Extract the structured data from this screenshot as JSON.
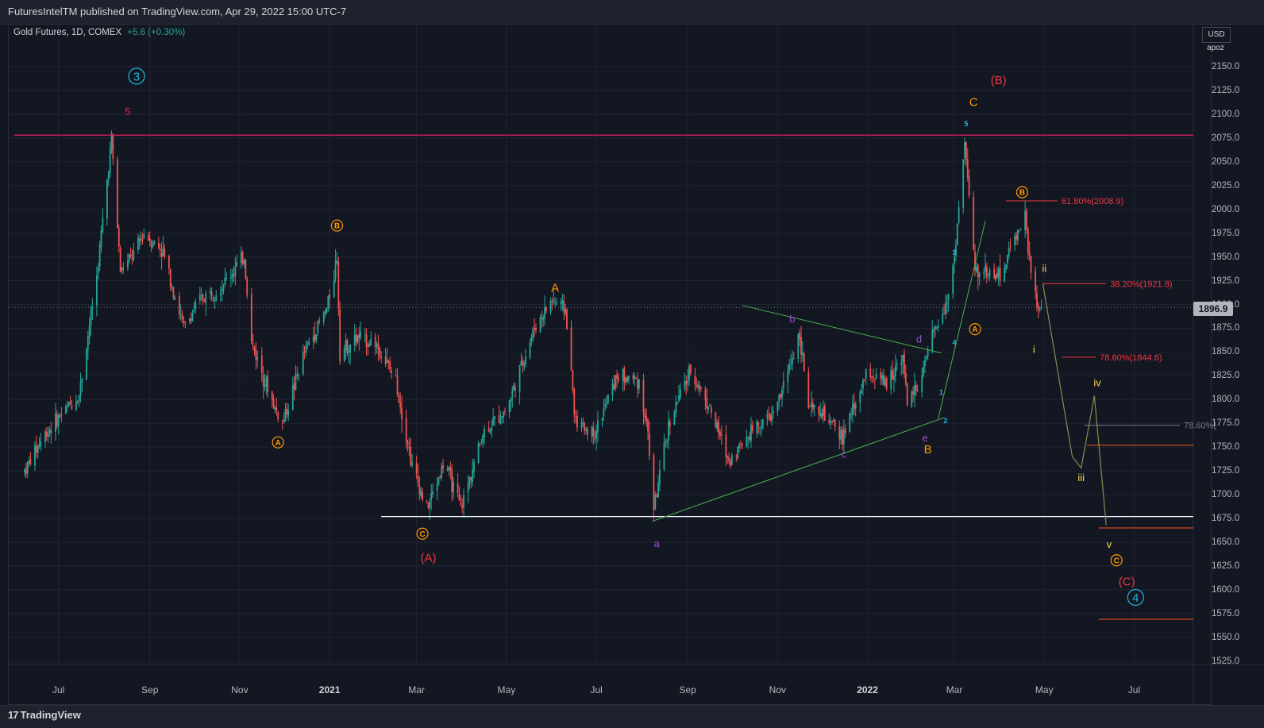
{
  "header": {
    "publisher_text": "FuturesIntelTM published on TradingView.com, Apr 29, 2022 15:00 UTC-7"
  },
  "symbol": {
    "title": "Gold Futures, 1D, COMEX",
    "change": "+5.6 (+0.30%)"
  },
  "price_scale": {
    "currency": "USD",
    "mode": "apoz"
  },
  "colors": {
    "background": "#131722",
    "up": "#26a69a",
    "down": "#ef5350",
    "wave_red": "#f23645",
    "wave_orange": "#ff9800",
    "wave_cyan": "#22b4e0",
    "wave_purple": "#9c4fd1",
    "wave_yellow": "#ffd740",
    "trendline": "#4caf50"
  },
  "footer": {
    "brand": "TradingView",
    "brand_mark": "17"
  },
  "chart_data": {
    "type": "candlestick",
    "title": "Gold Futures, 1D, COMEX",
    "last_price": "1896.9",
    "ylim": [
      1520,
      2172
    ],
    "y_ticks": [
      "2150.0",
      "2125.0",
      "2100.0",
      "2075.0",
      "2050.0",
      "2025.0",
      "2000.0",
      "1975.0",
      "1950.0",
      "1925.0",
      "1900.0",
      "1875.0",
      "1850.0",
      "1825.0",
      "1800.0",
      "1775.0",
      "1750.0",
      "1725.0",
      "1700.0",
      "1675.0",
      "1650.0",
      "1625.0",
      "1600.0",
      "1575.0",
      "1550.0",
      "1525.0"
    ],
    "x_ticks": [
      {
        "label": "Jul",
        "date": "2020-07-01",
        "bold": false
      },
      {
        "label": "Sep",
        "date": "2020-09-01",
        "bold": false
      },
      {
        "label": "Nov",
        "date": "2020-11-01",
        "bold": false
      },
      {
        "label": "2021",
        "date": "2021-01-01",
        "bold": true
      },
      {
        "label": "Mar",
        "date": "2021-03-01",
        "bold": false
      },
      {
        "label": "May",
        "date": "2021-05-01",
        "bold": false
      },
      {
        "label": "Jul",
        "date": "2021-07-01",
        "bold": false
      },
      {
        "label": "Sep",
        "date": "2021-09-01",
        "bold": false
      },
      {
        "label": "Nov",
        "date": "2021-11-01",
        "bold": false
      },
      {
        "label": "2022",
        "date": "2022-01-01",
        "bold": true
      },
      {
        "label": "Mar",
        "date": "2022-03-01",
        "bold": false
      },
      {
        "label": "May",
        "date": "2022-05-01",
        "bold": false
      },
      {
        "label": "Jul",
        "date": "2022-07-01",
        "bold": false
      }
    ],
    "price_path": [
      [
        "2020-06-08",
        1725
      ],
      [
        "2020-06-20",
        1760
      ],
      [
        "2020-07-06",
        1790
      ],
      [
        "2020-07-15",
        1805
      ],
      [
        "2020-07-27",
        1930
      ],
      [
        "2020-08-06",
        2075
      ],
      [
        "2020-08-12",
        1935
      ],
      [
        "2020-08-20",
        1950
      ],
      [
        "2020-08-28",
        1975
      ],
      [
        "2020-09-10",
        1955
      ],
      [
        "2020-09-24",
        1875
      ],
      [
        "2020-10-05",
        1905
      ],
      [
        "2020-10-20",
        1920
      ],
      [
        "2020-11-04",
        1950
      ],
      [
        "2020-11-09",
        1860
      ],
      [
        "2020-11-25",
        1790
      ],
      [
        "2020-11-30",
        1775
      ],
      [
        "2020-12-15",
        1850
      ],
      [
        "2020-12-30",
        1895
      ],
      [
        "2021-01-06",
        1950
      ],
      [
        "2021-01-08",
        1850
      ],
      [
        "2021-01-20",
        1865
      ],
      [
        "2021-02-01",
        1860
      ],
      [
        "2021-02-15",
        1820
      ],
      [
        "2021-02-26",
        1730
      ],
      [
        "2021-03-08",
        1685
      ],
      [
        "2021-03-20",
        1735
      ],
      [
        "2021-03-31",
        1685
      ],
      [
        "2021-04-15",
        1765
      ],
      [
        "2021-05-01",
        1790
      ],
      [
        "2021-05-20",
        1875
      ],
      [
        "2021-06-01",
        1905
      ],
      [
        "2021-06-10",
        1895
      ],
      [
        "2021-06-17",
        1775
      ],
      [
        "2021-06-30",
        1765
      ],
      [
        "2021-07-15",
        1825
      ],
      [
        "2021-07-30",
        1820
      ],
      [
        "2021-08-05",
        1765
      ],
      [
        "2021-08-09",
        1685
      ],
      [
        "2021-08-20",
        1780
      ],
      [
        "2021-09-03",
        1830
      ],
      [
        "2021-09-15",
        1795
      ],
      [
        "2021-09-29",
        1735
      ],
      [
        "2021-10-15",
        1770
      ],
      [
        "2021-10-30",
        1785
      ],
      [
        "2021-11-08",
        1830
      ],
      [
        "2021-11-16",
        1870
      ],
      [
        "2021-11-22",
        1790
      ],
      [
        "2021-12-01",
        1785
      ],
      [
        "2021-12-15",
        1760
      ],
      [
        "2022-01-01",
        1830
      ],
      [
        "2022-01-14",
        1815
      ],
      [
        "2022-01-25",
        1850
      ],
      [
        "2022-01-28",
        1795
      ],
      [
        "2022-02-07",
        1825
      ],
      [
        "2022-02-15",
        1870
      ],
      [
        "2022-02-24",
        1905
      ],
      [
        "2022-03-01",
        1950
      ],
      [
        "2022-03-08",
        2070
      ],
      [
        "2022-03-15",
        1935
      ],
      [
        "2022-03-22",
        1935
      ],
      [
        "2022-04-01",
        1930
      ],
      [
        "2022-04-12",
        1975
      ],
      [
        "2022-04-18",
        1990
      ],
      [
        "2022-04-21",
        1945
      ],
      [
        "2022-04-27",
        1890
      ],
      [
        "2022-04-29",
        1896.9
      ]
    ],
    "horizontal_lines": [
      {
        "name": "resistance",
        "price": 2078,
        "color": "#e91e63",
        "from": "2020-06-01",
        "to": "2022-08-01"
      },
      {
        "name": "support",
        "price": 1677,
        "color": "#ffffff",
        "from": "2021-02-05",
        "to": "2022-08-01"
      }
    ],
    "trendlines": [
      {
        "from": [
          "2021-08-08",
          1672
        ],
        "to": [
          "2022-02-22",
          1781
        ]
      },
      {
        "from": [
          "2021-10-08",
          1899
        ],
        "to": [
          "2022-02-20",
          1849
        ]
      },
      {
        "from": [
          "2022-02-18",
          1780
        ],
        "to": [
          "2022-03-22",
          1988
        ]
      }
    ],
    "fib_levels": [
      {
        "label": "61.80%(2008.9)",
        "price": 2008.9,
        "from": "2022-04-05",
        "to": "2022-05-10",
        "color": "#f23645"
      },
      {
        "label": "38.20%(1921.8)",
        "price": 1921.8,
        "from": "2022-04-30",
        "to": "2022-06-12",
        "color": "#f23645"
      },
      {
        "label": "78.60%(1844.6)",
        "price": 1844.6,
        "from": "2022-05-13",
        "to": "2022-06-05",
        "color": "#f23645"
      },
      {
        "label": "78.60%(",
        "price": 1773,
        "from": "2022-05-28",
        "to": "2022-08-01",
        "color": "#787b86"
      }
    ],
    "extra_levels": [
      {
        "price": 1752,
        "from": "2022-05-30",
        "to": "2022-08-01",
        "color": "#ff5722"
      },
      {
        "price": 1665,
        "from": "2022-06-07",
        "to": "2022-08-01",
        "color": "#ff5722"
      },
      {
        "price": 1569,
        "from": "2022-06-07",
        "to": "2022-08-01",
        "color": "#ff5722"
      }
    ],
    "projection_path": [
      [
        "2022-04-30",
        1922
      ],
      [
        "2022-05-20",
        1740
      ],
      [
        "2022-05-26",
        1728
      ],
      [
        "2022-06-04",
        1804
      ],
      [
        "2022-06-12",
        1668
      ]
    ],
    "wave_labels": [
      {
        "text": "3",
        "date": "2020-08-23",
        "price": 2140,
        "color": "#22b4e0",
        "circle": true,
        "size": 15
      },
      {
        "text": "5",
        "date": "2020-08-17",
        "price": 2103,
        "color": "#e91e63",
        "circle": false,
        "size": 13
      },
      {
        "text": "B",
        "date": "2021-01-06",
        "price": 1983,
        "color": "#ff9800",
        "circle": true,
        "size": 10
      },
      {
        "text": "A",
        "date": "2020-11-27",
        "price": 1755,
        "color": "#ff9800",
        "circle": true,
        "size": 10
      },
      {
        "text": "C",
        "date": "2021-03-05",
        "price": 1659,
        "color": "#ff9800",
        "circle": true,
        "size": 10
      },
      {
        "text": "(A)",
        "date": "2021-03-09",
        "price": 1634,
        "color": "#f23645",
        "circle": false,
        "size": 15
      },
      {
        "text": "A",
        "date": "2021-06-03",
        "price": 1918,
        "color": "#ff9800",
        "circle": false,
        "size": 15
      },
      {
        "text": "a",
        "date": "2021-08-11",
        "price": 1649,
        "color": "#9c4fd1",
        "circle": false,
        "size": 13
      },
      {
        "text": "b",
        "date": "2021-11-11",
        "price": 1885,
        "color": "#9c4fd1",
        "circle": false,
        "size": 13
      },
      {
        "text": "c",
        "date": "2021-12-16",
        "price": 1743,
        "color": "#9c4fd1",
        "circle": false,
        "size": 13
      },
      {
        "text": "d",
        "date": "2022-02-05",
        "price": 1864,
        "color": "#9c4fd1",
        "circle": false,
        "size": 13
      },
      {
        "text": "e",
        "date": "2022-02-09",
        "price": 1760,
        "color": "#9c4fd1",
        "circle": false,
        "size": 13
      },
      {
        "text": "B",
        "date": "2022-02-11",
        "price": 1748,
        "color": "#ff9800",
        "circle": false,
        "size": 15
      },
      {
        "text": "1",
        "date": "2022-02-20",
        "price": 1808,
        "color": "#22b4e0",
        "circle": false,
        "size": 9
      },
      {
        "text": "2",
        "date": "2022-02-23",
        "price": 1778,
        "color": "#22b4e0",
        "circle": false,
        "size": 9
      },
      {
        "text": "3",
        "date": "2022-03-01",
        "price": 1955,
        "color": "#22b4e0",
        "circle": false,
        "size": 9
      },
      {
        "text": "4",
        "date": "2022-03-01",
        "price": 1860,
        "color": "#22b4e0",
        "circle": false,
        "size": 9
      },
      {
        "text": "5",
        "date": "2022-03-09",
        "price": 2090,
        "color": "#22b4e0",
        "circle": false,
        "size": 9
      },
      {
        "text": "C",
        "date": "2022-03-14",
        "price": 2113,
        "color": "#ff9800",
        "circle": false,
        "size": 15
      },
      {
        "text": "(B)",
        "date": "2022-03-31",
        "price": 2136,
        "color": "#f23645",
        "circle": false,
        "size": 15
      },
      {
        "text": "A",
        "date": "2022-03-15",
        "price": 1874,
        "color": "#ff9800",
        "circle": true,
        "size": 10
      },
      {
        "text": "B",
        "date": "2022-04-16",
        "price": 2018,
        "color": "#ff9800",
        "circle": true,
        "size": 10
      },
      {
        "text": "i",
        "date": "2022-04-24",
        "price": 1853,
        "color": "#ffd740",
        "circle": false,
        "size": 13
      },
      {
        "text": "ii",
        "date": "2022-05-01",
        "price": 1938,
        "color": "#ffd740",
        "circle": false,
        "size": 13
      },
      {
        "text": "iii",
        "date": "2022-05-26",
        "price": 1718,
        "color": "#ffd740",
        "circle": false,
        "size": 13
      },
      {
        "text": "iv",
        "date": "2022-06-06",
        "price": 1818,
        "color": "#ffd740",
        "circle": false,
        "size": 13
      },
      {
        "text": "v",
        "date": "2022-06-14",
        "price": 1648,
        "color": "#ffd740",
        "circle": false,
        "size": 13
      },
      {
        "text": "C",
        "date": "2022-06-19",
        "price": 1631,
        "color": "#ff9800",
        "circle": true,
        "size": 10
      },
      {
        "text": "(C)",
        "date": "2022-06-26",
        "price": 1609,
        "color": "#f23645",
        "circle": false,
        "size": 15
      },
      {
        "text": "4",
        "date": "2022-07-02",
        "price": 1592,
        "color": "#22b4e0",
        "circle": true,
        "size": 15
      }
    ]
  }
}
